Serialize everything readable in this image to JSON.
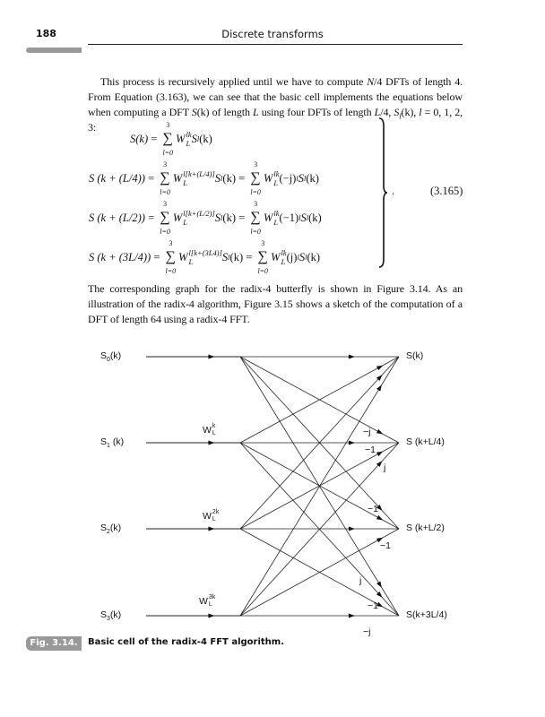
{
  "header": {
    "page_number": "188",
    "running_title": "Discrete transforms"
  },
  "paragraph1": {
    "t1": "This process is recursively applied until we have to compute ",
    "N": "N",
    "t2": "/4 DFTs of length 4. From Equation (3.163), we can see that the basic cell implements the equations below when computing a DFT ",
    "Sk": "S",
    "t3": "(k) of length ",
    "L": "L",
    "t4": " using four DFTs of length ",
    "L4": "L",
    "t5": "/4, ",
    "Sl": "S",
    "l": "l",
    "t6": "(k), ",
    "lvar": "l",
    "t7": " = 0, 1, 2, 3:"
  },
  "equation": {
    "number": "(3.165)",
    "sum_upper": "3",
    "sum_lower": "l=0",
    "W": "W",
    "L": "L",
    "S": "S",
    "l": "l",
    "k": "(k)",
    "eq": "=",
    "lines": [
      {
        "lhs": "S(k)",
        "exp1": "lk"
      },
      {
        "lhs": "S (k + (L/4))",
        "exp1": "l[k+(L/4)]",
        "exp2": "lk",
        "factor": "(−j)",
        "factor_exp": "l"
      },
      {
        "lhs": "S (k + (L/2))",
        "exp1": "l[k+(L/2)]",
        "exp2": "lk",
        "factor": "(−1)",
        "factor_exp": "l"
      },
      {
        "lhs": "S (k + (3L/4))",
        "exp1": "l[k+(3L4)]",
        "exp2": "lk",
        "factor": "(j)",
        "factor_exp": "l"
      }
    ]
  },
  "paragraph2": "The corresponding graph for the radix-4 butterfly is shown in Figure 3.14. As an illustration of the radix-4 algorithm, Figure 3.15 shows a sketch of the computation of a DFT of length 64 using a radix-4 FFT.",
  "figure": {
    "inputs": [
      {
        "s": "S",
        "sub": "0",
        "arg": "(k)"
      },
      {
        "s": "S",
        "sub": "1",
        "arg": " (k)"
      },
      {
        "s": "S",
        "sub": "2",
        "arg": "(k)"
      },
      {
        "s": "S",
        "sub": "3",
        "arg": "(k)"
      }
    ],
    "outputs": [
      "S(k)",
      "S (k+L/4)",
      "S (k+L/2)",
      "S(k+3L/4)"
    ],
    "twiddles": [
      {
        "w": "W",
        "sub": "L",
        "sup": "k"
      },
      {
        "w": "W",
        "sub": "L",
        "sup": "2k"
      },
      {
        "w": "W",
        "sub": "L",
        "sup": "3k"
      }
    ],
    "edge_labels": [
      "−j",
      "−1",
      "j",
      "−1",
      "−1",
      "j",
      "−1",
      "−j"
    ]
  },
  "caption": {
    "tag": "Fig. 3.14.",
    "text": "Basic cell of the radix-4 FFT algorithm."
  }
}
